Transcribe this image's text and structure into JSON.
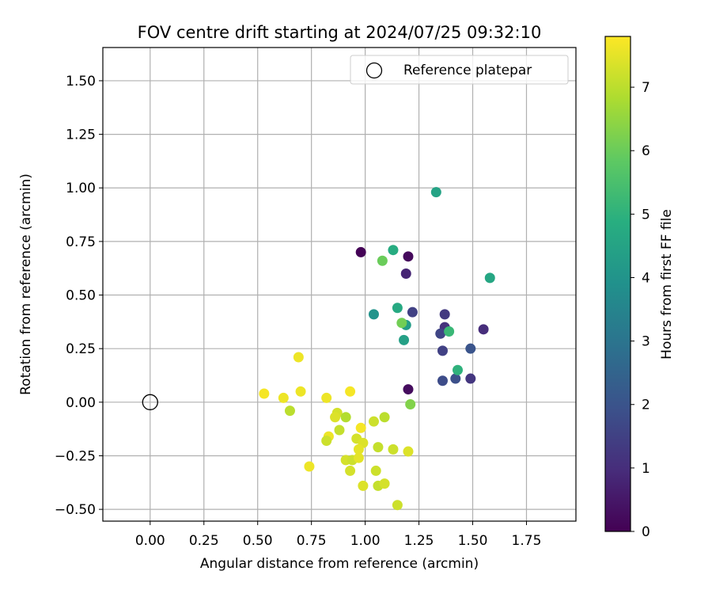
{
  "chart_data": {
    "type": "scatter",
    "title": "FOV centre drift starting at 2024/07/25 09:32:10",
    "xlabel": "Angular distance from reference (arcmin)",
    "ylabel": "Rotation from reference (arcmin)",
    "xlim": [
      -0.22,
      1.98
    ],
    "ylim": [
      -0.555,
      1.655
    ],
    "xticks": [
      0.0,
      0.25,
      0.5,
      0.75,
      1.0,
      1.25,
      1.5,
      1.75
    ],
    "xtick_labels": [
      "0.00",
      "0.25",
      "0.50",
      "0.75",
      "1.00",
      "1.25",
      "1.50",
      "1.75"
    ],
    "yticks": [
      -0.5,
      -0.25,
      0.0,
      0.25,
      0.5,
      0.75,
      1.0,
      1.25,
      1.5
    ],
    "ytick_labels": [
      "−0.50",
      "−0.25",
      "0.00",
      "0.25",
      "0.50",
      "0.75",
      "1.00",
      "1.25",
      "1.50"
    ],
    "grid": true,
    "legend": {
      "placement": "top-right",
      "label": "Reference platepar"
    },
    "reference_point": {
      "x": 0.0,
      "y": 0.0
    },
    "colorbar": {
      "label": "Hours from first FF file",
      "colormap": "viridis",
      "range": [
        0,
        7.8
      ],
      "ticks": [
        0,
        1,
        2,
        3,
        4,
        5,
        6,
        7
      ],
      "tick_labels": [
        "0",
        "1",
        "2",
        "3",
        "4",
        "5",
        "6",
        "7"
      ]
    },
    "points": [
      {
        "x": 0.98,
        "y": 0.7,
        "hours": 0.05
      },
      {
        "x": 1.2,
        "y": 0.68,
        "hours": 0.2
      },
      {
        "x": 1.19,
        "y": 0.6,
        "hours": 0.8
      },
      {
        "x": 1.2,
        "y": 0.06,
        "hours": 0.25
      },
      {
        "x": 1.22,
        "y": 0.42,
        "hours": 1.5
      },
      {
        "x": 1.37,
        "y": 0.41,
        "hours": 1.3
      },
      {
        "x": 1.37,
        "y": 0.35,
        "hours": 1.1
      },
      {
        "x": 1.35,
        "y": 0.32,
        "hours": 1.6
      },
      {
        "x": 1.55,
        "y": 0.34,
        "hours": 1.0
      },
      {
        "x": 1.36,
        "y": 0.24,
        "hours": 1.5
      },
      {
        "x": 1.49,
        "y": 0.25,
        "hours": 2.0
      },
      {
        "x": 1.36,
        "y": 0.1,
        "hours": 1.8
      },
      {
        "x": 1.42,
        "y": 0.11,
        "hours": 1.9
      },
      {
        "x": 1.49,
        "y": 0.11,
        "hours": 1.2
      },
      {
        "x": 1.33,
        "y": 0.98,
        "hours": 4.5
      },
      {
        "x": 1.13,
        "y": 0.71,
        "hours": 4.8
      },
      {
        "x": 1.58,
        "y": 0.58,
        "hours": 4.6
      },
      {
        "x": 1.04,
        "y": 0.41,
        "hours": 4.0
      },
      {
        "x": 1.15,
        "y": 0.44,
        "hours": 4.7
      },
      {
        "x": 1.19,
        "y": 0.36,
        "hours": 4.3
      },
      {
        "x": 1.18,
        "y": 0.29,
        "hours": 4.4
      },
      {
        "x": 1.39,
        "y": 0.33,
        "hours": 5.2
      },
      {
        "x": 1.43,
        "y": 0.15,
        "hours": 5.0
      },
      {
        "x": 1.08,
        "y": 0.66,
        "hours": 6.0
      },
      {
        "x": 1.17,
        "y": 0.37,
        "hours": 6.1
      },
      {
        "x": 1.21,
        "y": -0.01,
        "hours": 6.3
      },
      {
        "x": 0.69,
        "y": 0.21,
        "hours": 7.6
      },
      {
        "x": 0.53,
        "y": 0.04,
        "hours": 7.7
      },
      {
        "x": 0.62,
        "y": 0.02,
        "hours": 7.6
      },
      {
        "x": 0.7,
        "y": 0.05,
        "hours": 7.6
      },
      {
        "x": 0.82,
        "y": 0.02,
        "hours": 7.6
      },
      {
        "x": 0.93,
        "y": 0.05,
        "hours": 7.7
      },
      {
        "x": 0.65,
        "y": -0.04,
        "hours": 7.0
      },
      {
        "x": 0.87,
        "y": -0.05,
        "hours": 7.3
      },
      {
        "x": 0.86,
        "y": -0.07,
        "hours": 7.4
      },
      {
        "x": 0.91,
        "y": -0.07,
        "hours": 6.9
      },
      {
        "x": 0.88,
        "y": -0.13,
        "hours": 7.1
      },
      {
        "x": 0.83,
        "y": -0.16,
        "hours": 7.6
      },
      {
        "x": 0.82,
        "y": -0.18,
        "hours": 7.2
      },
      {
        "x": 0.96,
        "y": -0.17,
        "hours": 7.3
      },
      {
        "x": 0.98,
        "y": -0.12,
        "hours": 7.7
      },
      {
        "x": 0.99,
        "y": -0.19,
        "hours": 7.4
      },
      {
        "x": 0.97,
        "y": -0.22,
        "hours": 7.5
      },
      {
        "x": 1.04,
        "y": -0.09,
        "hours": 7.2
      },
      {
        "x": 1.09,
        "y": -0.07,
        "hours": 7.0
      },
      {
        "x": 1.06,
        "y": -0.21,
        "hours": 7.1
      },
      {
        "x": 1.13,
        "y": -0.22,
        "hours": 7.2
      },
      {
        "x": 1.2,
        "y": -0.23,
        "hours": 7.4
      },
      {
        "x": 0.91,
        "y": -0.27,
        "hours": 7.3
      },
      {
        "x": 0.94,
        "y": -0.27,
        "hours": 7.2
      },
      {
        "x": 0.97,
        "y": -0.26,
        "hours": 7.5
      },
      {
        "x": 0.74,
        "y": -0.3,
        "hours": 7.6
      },
      {
        "x": 0.93,
        "y": -0.32,
        "hours": 7.3
      },
      {
        "x": 1.05,
        "y": -0.32,
        "hours": 7.2
      },
      {
        "x": 0.99,
        "y": -0.39,
        "hours": 7.4
      },
      {
        "x": 1.06,
        "y": -0.39,
        "hours": 7.1
      },
      {
        "x": 1.09,
        "y": -0.38,
        "hours": 7.3
      },
      {
        "x": 1.15,
        "y": -0.48,
        "hours": 7.2
      }
    ]
  }
}
